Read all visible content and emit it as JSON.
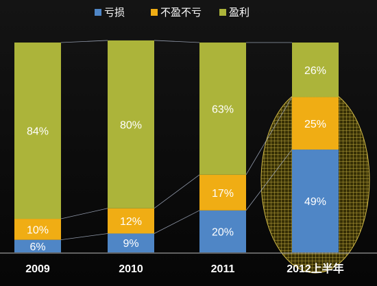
{
  "chart_data": {
    "type": "bar",
    "stacked": true,
    "percent_stacked": true,
    "categories": [
      "2009",
      "2010",
      "2011",
      "2012上半年"
    ],
    "series": [
      {
        "name": "亏损",
        "color": "#4f86c6",
        "values": [
          6,
          9,
          20,
          49
        ]
      },
      {
        "name": "不盈不亏",
        "color": "#f0ad14",
        "values": [
          10,
          12,
          17,
          25
        ]
      },
      {
        "name": "盈利",
        "color": "#acb43a",
        "values": [
          84,
          80,
          63,
          26
        ]
      }
    ],
    "value_suffix": "%",
    "ylim": [
      0,
      100
    ],
    "legend_position": "top-center",
    "grid": false,
    "connector_lines": true,
    "highlight_category": "2012上半年",
    "highlight_color": "#d8c04a"
  }
}
